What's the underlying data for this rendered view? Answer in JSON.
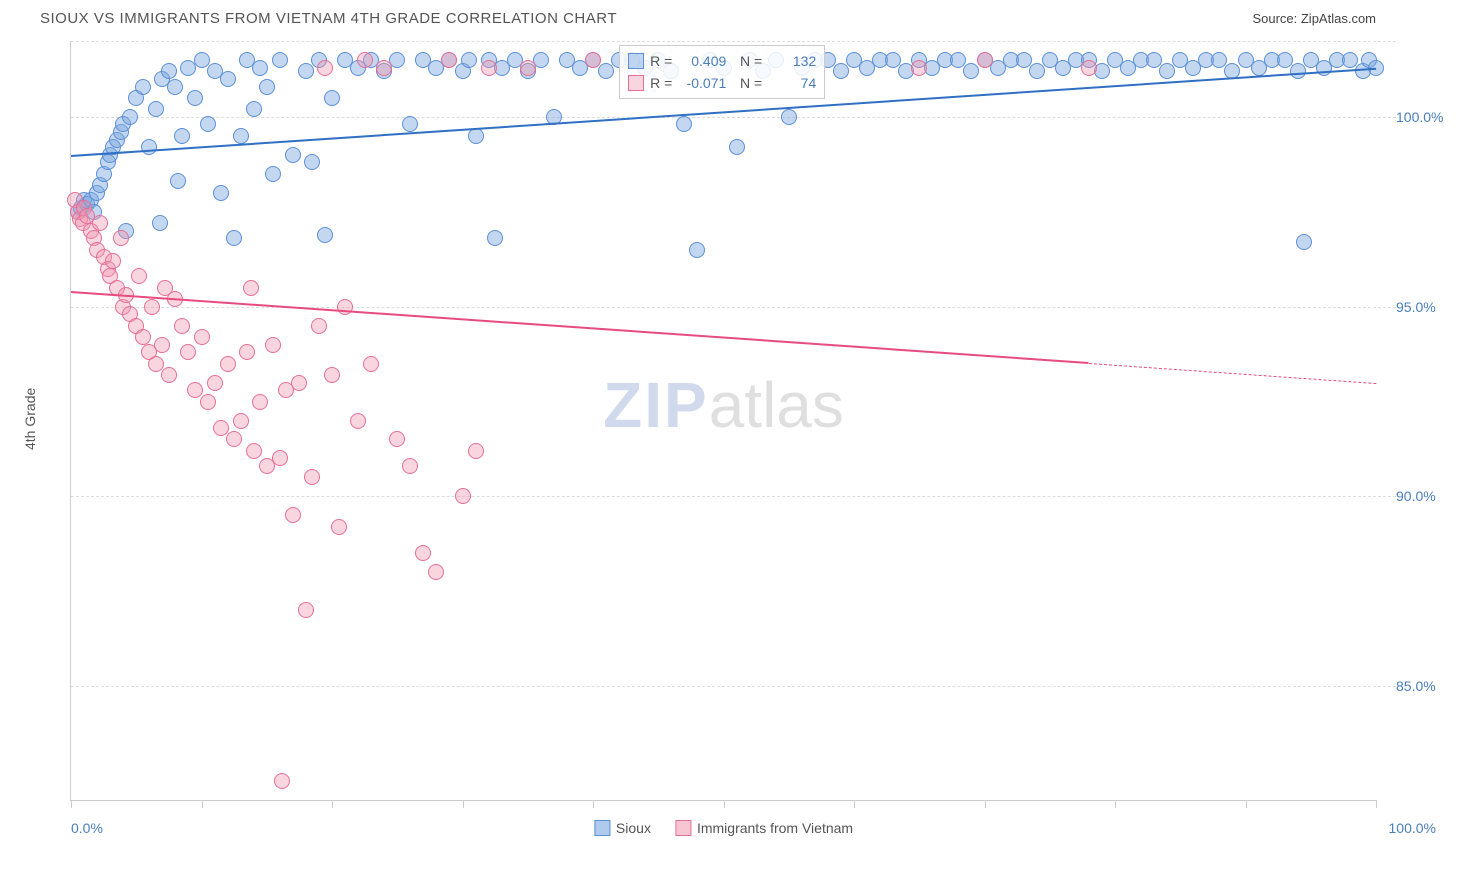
{
  "header": {
    "title": "SIOUX VS IMMIGRANTS FROM VIETNAM 4TH GRADE CORRELATION CHART",
    "source": "Source: ZipAtlas.com"
  },
  "chart": {
    "type": "scatter",
    "y_axis_title": "4th Grade",
    "x_range": [
      0,
      100
    ],
    "y_range": [
      82,
      102
    ],
    "y_gridlines": [
      85,
      90,
      95,
      100,
      102
    ],
    "y_tick_labels": [
      "85.0%",
      "90.0%",
      "95.0%",
      "100.0%"
    ],
    "y_tick_values": [
      85,
      90,
      95,
      100
    ],
    "x_ticks": [
      0,
      10,
      20,
      30,
      40,
      50,
      60,
      70,
      80,
      90,
      100
    ],
    "x_min_label": "0.0%",
    "x_max_label": "100.0%",
    "background_color": "#ffffff",
    "grid_color": "#dddddd",
    "axis_color": "#cccccc",
    "label_color": "#4a7ebb",
    "label_fontsize": 14,
    "watermark": "ZIPatlas",
    "series": [
      {
        "name": "Sioux",
        "color_fill": "rgba(122,167,224,0.45)",
        "color_stroke": "#5b8fd6",
        "marker_size": 16,
        "R": "0.409",
        "N": "132",
        "trend": {
          "x1": 0,
          "y1": 99.0,
          "x2": 100,
          "y2": 101.3,
          "color": "#2f6fc4",
          "width": 2.5,
          "dash_from_x": null
        },
        "points": [
          [
            0.5,
            97.5
          ],
          [
            0.8,
            97.6
          ],
          [
            1.0,
            97.8
          ],
          [
            1.2,
            97.7
          ],
          [
            1.5,
            97.8
          ],
          [
            1.8,
            97.5
          ],
          [
            2.0,
            98.0
          ],
          [
            2.2,
            98.2
          ],
          [
            2.5,
            98.5
          ],
          [
            2.8,
            98.8
          ],
          [
            3.0,
            99.0
          ],
          [
            3.2,
            99.2
          ],
          [
            3.5,
            99.4
          ],
          [
            3.8,
            99.6
          ],
          [
            4.0,
            99.8
          ],
          [
            4.5,
            100.0
          ],
          [
            5.0,
            100.5
          ],
          [
            5.5,
            100.8
          ],
          [
            6.0,
            99.2
          ],
          [
            6.5,
            100.2
          ],
          [
            7.0,
            101.0
          ],
          [
            7.5,
            101.2
          ],
          [
            8.0,
            100.8
          ],
          [
            8.5,
            99.5
          ],
          [
            9.0,
            101.3
          ],
          [
            9.5,
            100.5
          ],
          [
            10.0,
            101.5
          ],
          [
            10.5,
            99.8
          ],
          [
            11.0,
            101.2
          ],
          [
            12.0,
            101.0
          ],
          [
            12.5,
            96.8
          ],
          [
            13.0,
            99.5
          ],
          [
            13.5,
            101.5
          ],
          [
            14.0,
            100.2
          ],
          [
            14.5,
            101.3
          ],
          [
            15.0,
            100.8
          ],
          [
            16.0,
            101.5
          ],
          [
            17.0,
            99.0
          ],
          [
            18.0,
            101.2
          ],
          [
            19.0,
            101.5
          ],
          [
            19.5,
            96.9
          ],
          [
            20.0,
            100.5
          ],
          [
            21.0,
            101.5
          ],
          [
            22.0,
            101.3
          ],
          [
            23.0,
            101.5
          ],
          [
            24.0,
            101.2
          ],
          [
            25.0,
            101.5
          ],
          [
            26.0,
            99.8
          ],
          [
            27.0,
            101.5
          ],
          [
            28.0,
            101.3
          ],
          [
            29.0,
            101.5
          ],
          [
            30.0,
            101.2
          ],
          [
            30.5,
            101.5
          ],
          [
            31.0,
            99.5
          ],
          [
            32.0,
            101.5
          ],
          [
            32.5,
            96.8
          ],
          [
            33.0,
            101.3
          ],
          [
            34.0,
            101.5
          ],
          [
            35.0,
            101.2
          ],
          [
            36.0,
            101.5
          ],
          [
            37.0,
            100.0
          ],
          [
            38.0,
            101.5
          ],
          [
            39.0,
            101.3
          ],
          [
            40.0,
            101.5
          ],
          [
            41.0,
            101.2
          ],
          [
            42.0,
            101.5
          ],
          [
            43.0,
            101.5
          ],
          [
            44.0,
            101.3
          ],
          [
            45.0,
            101.5
          ],
          [
            46.0,
            101.2
          ],
          [
            47.0,
            99.8
          ],
          [
            48.0,
            96.5
          ],
          [
            49.0,
            101.5
          ],
          [
            50.0,
            101.3
          ],
          [
            51.0,
            99.2
          ],
          [
            52.0,
            101.5
          ],
          [
            53.0,
            101.2
          ],
          [
            54.0,
            101.5
          ],
          [
            55.0,
            100.0
          ],
          [
            56.0,
            101.3
          ],
          [
            57.0,
            101.5
          ],
          [
            58.0,
            101.5
          ],
          [
            59.0,
            101.2
          ],
          [
            60.0,
            101.5
          ],
          [
            61.0,
            101.3
          ],
          [
            62.0,
            101.5
          ],
          [
            63.0,
            101.5
          ],
          [
            64.0,
            101.2
          ],
          [
            65.0,
            101.5
          ],
          [
            66.0,
            101.3
          ],
          [
            67.0,
            101.5
          ],
          [
            68.0,
            101.5
          ],
          [
            69.0,
            101.2
          ],
          [
            70.0,
            101.5
          ],
          [
            71.0,
            101.3
          ],
          [
            72.0,
            101.5
          ],
          [
            73.0,
            101.5
          ],
          [
            74.0,
            101.2
          ],
          [
            75.0,
            101.5
          ],
          [
            76.0,
            101.3
          ],
          [
            77.0,
            101.5
          ],
          [
            78.0,
            101.5
          ],
          [
            79.0,
            101.2
          ],
          [
            80.0,
            101.5
          ],
          [
            81.0,
            101.3
          ],
          [
            82.0,
            101.5
          ],
          [
            83.0,
            101.5
          ],
          [
            84.0,
            101.2
          ],
          [
            85.0,
            101.5
          ],
          [
            86.0,
            101.3
          ],
          [
            87.0,
            101.5
          ],
          [
            88.0,
            101.5
          ],
          [
            89.0,
            101.2
          ],
          [
            90.0,
            101.5
          ],
          [
            91.0,
            101.3
          ],
          [
            92.0,
            101.5
          ],
          [
            93.0,
            101.5
          ],
          [
            94.0,
            101.2
          ],
          [
            94.5,
            96.7
          ],
          [
            95.0,
            101.5
          ],
          [
            96.0,
            101.3
          ],
          [
            97.0,
            101.5
          ],
          [
            98.0,
            101.5
          ],
          [
            99.0,
            101.2
          ],
          [
            99.5,
            101.5
          ],
          [
            100.0,
            101.3
          ],
          [
            4.2,
            97.0
          ],
          [
            6.8,
            97.2
          ],
          [
            8.2,
            98.3
          ],
          [
            11.5,
            98.0
          ],
          [
            15.5,
            98.5
          ],
          [
            18.5,
            98.8
          ]
        ]
      },
      {
        "name": "Immigrants from Vietnam",
        "color_fill": "rgba(240,150,175,0.40)",
        "color_stroke": "#e56f97",
        "marker_size": 16,
        "R": "-0.071",
        "N": "74",
        "trend": {
          "x1": 0,
          "y1": 95.4,
          "x2": 100,
          "y2": 93.0,
          "color": "#e84b7e",
          "width": 2,
          "dash_from_x": 78
        },
        "points": [
          [
            0.3,
            97.8
          ],
          [
            0.5,
            97.5
          ],
          [
            0.7,
            97.3
          ],
          [
            0.9,
            97.2
          ],
          [
            1.0,
            97.6
          ],
          [
            1.2,
            97.4
          ],
          [
            1.5,
            97.0
          ],
          [
            1.8,
            96.8
          ],
          [
            2.0,
            96.5
          ],
          [
            2.2,
            97.2
          ],
          [
            2.5,
            96.3
          ],
          [
            2.8,
            96.0
          ],
          [
            3.0,
            95.8
          ],
          [
            3.2,
            96.2
          ],
          [
            3.5,
            95.5
          ],
          [
            3.8,
            96.8
          ],
          [
            4.0,
            95.0
          ],
          [
            4.2,
            95.3
          ],
          [
            4.5,
            94.8
          ],
          [
            5.0,
            94.5
          ],
          [
            5.2,
            95.8
          ],
          [
            5.5,
            94.2
          ],
          [
            6.0,
            93.8
          ],
          [
            6.2,
            95.0
          ],
          [
            6.5,
            93.5
          ],
          [
            7.0,
            94.0
          ],
          [
            7.2,
            95.5
          ],
          [
            7.5,
            93.2
          ],
          [
            8.0,
            95.2
          ],
          [
            8.5,
            94.5
          ],
          [
            9.0,
            93.8
          ],
          [
            9.5,
            92.8
          ],
          [
            10.0,
            94.2
          ],
          [
            10.5,
            92.5
          ],
          [
            11.0,
            93.0
          ],
          [
            11.5,
            91.8
          ],
          [
            12.0,
            93.5
          ],
          [
            12.5,
            91.5
          ],
          [
            13.0,
            92.0
          ],
          [
            13.5,
            93.8
          ],
          [
            14.0,
            91.2
          ],
          [
            14.5,
            92.5
          ],
          [
            15.0,
            90.8
          ],
          [
            15.5,
            94.0
          ],
          [
            16.0,
            91.0
          ],
          [
            16.5,
            92.8
          ],
          [
            17.0,
            89.5
          ],
          [
            17.5,
            93.0
          ],
          [
            18.0,
            87.0
          ],
          [
            18.5,
            90.5
          ],
          [
            19.0,
            94.5
          ],
          [
            19.5,
            101.3
          ],
          [
            20.0,
            93.2
          ],
          [
            20.5,
            89.2
          ],
          [
            21.0,
            95.0
          ],
          [
            22.0,
            92.0
          ],
          [
            23.0,
            93.5
          ],
          [
            24.0,
            101.3
          ],
          [
            25.0,
            91.5
          ],
          [
            26.0,
            90.8
          ],
          [
            27.0,
            88.5
          ],
          [
            28.0,
            88.0
          ],
          [
            29.0,
            101.5
          ],
          [
            30.0,
            90.0
          ],
          [
            31.0,
            91.2
          ],
          [
            32.0,
            101.3
          ],
          [
            16.2,
            82.5
          ],
          [
            13.8,
            95.5
          ],
          [
            22.5,
            101.5
          ],
          [
            35.0,
            101.3
          ],
          [
            40.0,
            101.5
          ],
          [
            65.0,
            101.3
          ],
          [
            70.0,
            101.5
          ],
          [
            78.0,
            101.3
          ]
        ]
      }
    ],
    "bottom_legend": [
      {
        "name": "Sioux",
        "fill": "rgba(122,167,224,0.6)",
        "stroke": "#5b8fd6"
      },
      {
        "name": "Immigrants from Vietnam",
        "fill": "rgba(240,150,175,0.55)",
        "stroke": "#e56f97"
      }
    ]
  }
}
